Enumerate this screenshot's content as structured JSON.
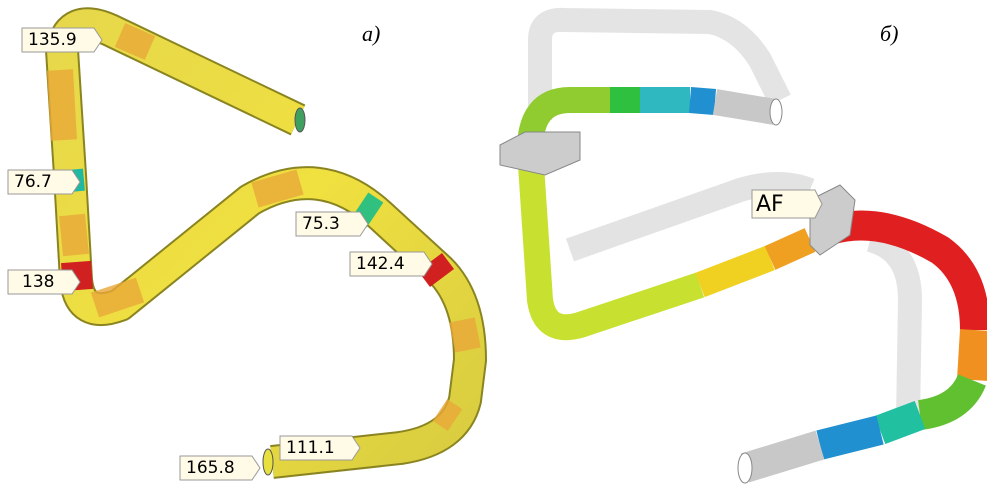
{
  "panel_a": {
    "caption": "а)",
    "labels": [
      "135.9",
      "76.7",
      "138",
      "75.3",
      "142.4",
      "165.8",
      "111.1"
    ]
  },
  "panel_b": {
    "caption": "б)",
    "support_label": "AF"
  }
}
